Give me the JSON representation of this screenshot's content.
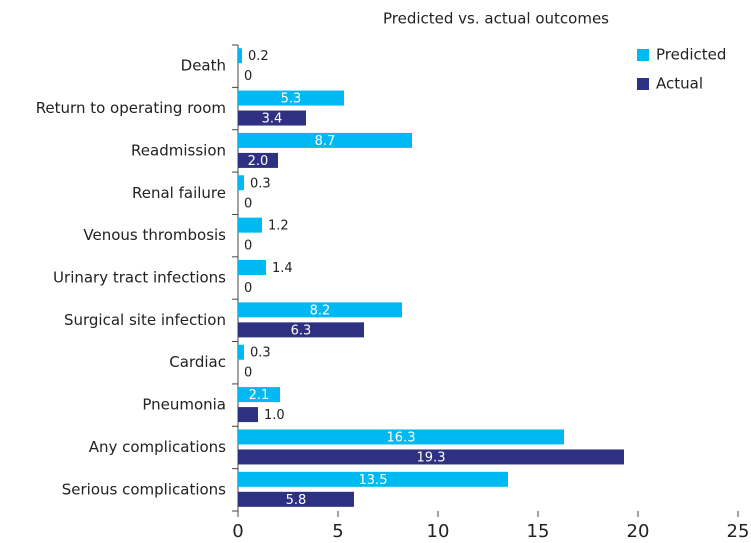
{
  "chart_data": {
    "type": "bar",
    "orientation": "horizontal",
    "title": "Predicted vs. actual outcomes",
    "categories": [
      "Death",
      "Return to operating room",
      "Readmission",
      "Renal failure",
      "Venous thrombosis",
      "Urinary tract infections",
      "Surgical site infection",
      "Cardiac",
      "Pneumonia",
      "Any complications",
      "Serious complications"
    ],
    "series": [
      {
        "name": "Predicted",
        "color": "#00b9f2",
        "values": [
          0.2,
          5.3,
          8.7,
          0.3,
          1.2,
          1.4,
          8.2,
          0.3,
          2.1,
          16.3,
          13.5
        ],
        "value_labels": [
          "0.2",
          "5.3",
          "8.7",
          "0.3",
          "1.2",
          "1.4",
          "8.2",
          "0.3",
          "2.1",
          "16.3",
          "13.5"
        ]
      },
      {
        "name": "Actual",
        "color": "#2e3182",
        "values": [
          0,
          3.4,
          2,
          0,
          0,
          0,
          6.3,
          0,
          1,
          19.3,
          5.8
        ],
        "value_labels": [
          "0",
          "3.4",
          "2.0",
          "0",
          "0",
          "0",
          "6.3",
          "0",
          "1.0",
          "19.3",
          "5.8"
        ]
      }
    ],
    "xlim": [
      0,
      25
    ],
    "xticks": [
      0,
      5,
      10,
      15,
      20,
      25
    ],
    "legend": "top-right"
  }
}
